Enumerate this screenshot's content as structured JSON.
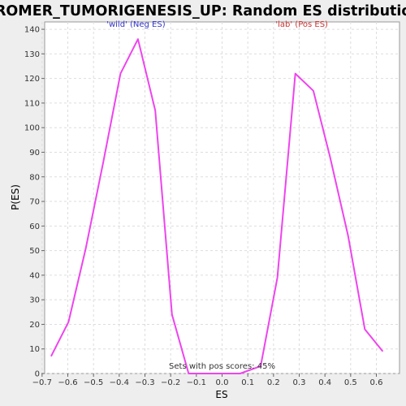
{
  "chart_data": {
    "type": "line",
    "title": "CROMER_TUMORIGENESIS_UP: Random ES distribution",
    "xlabel": "ES",
    "ylabel": "P(ES)",
    "xlim": [
      -0.69,
      0.69
    ],
    "ylim": [
      0,
      143
    ],
    "x_ticks": [
      -0.7,
      -0.6,
      -0.5,
      -0.4,
      -0.3,
      -0.2,
      -0.1,
      0.0,
      0.1,
      0.2,
      0.3,
      0.4,
      0.5,
      0.6
    ],
    "y_ticks": [
      0,
      10,
      20,
      30,
      40,
      50,
      60,
      70,
      80,
      90,
      100,
      110,
      120,
      130,
      140
    ],
    "grid": true,
    "line_color": "#ee44ee",
    "series": [
      {
        "x": [
          -0.665,
          -0.597,
          -0.53,
          -0.462,
          -0.395,
          -0.327,
          -0.26,
          -0.195,
          -0.13,
          -0.06,
          0.0,
          0.07,
          0.15,
          0.215,
          0.285,
          0.355,
          0.42,
          0.49,
          0.555,
          0.625
        ],
        "values": [
          7,
          21,
          51,
          86,
          122,
          136,
          107,
          24,
          0,
          0,
          0,
          0,
          3,
          39,
          122,
          115,
          88,
          56,
          18,
          9
        ]
      }
    ],
    "annotations": [
      {
        "text": "'wild' (Neg ES)",
        "x": -0.335,
        "y": 141,
        "color": "#3333cc"
      },
      {
        "text": "'lab' (Pos ES)",
        "x": 0.31,
        "y": 141,
        "color": "#cc3333"
      },
      {
        "text": "Sets with pos scores: 45%",
        "x": 0.0,
        "y": 2,
        "color": "#333333"
      }
    ]
  }
}
